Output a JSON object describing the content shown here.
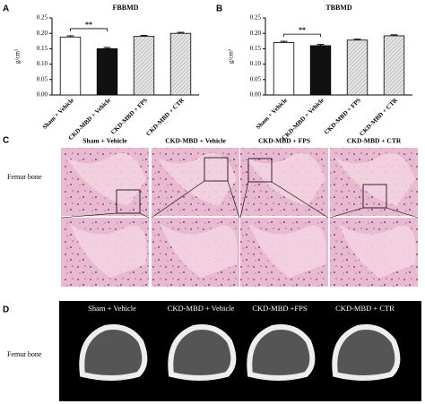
{
  "chart_data": [
    {
      "type": "bar",
      "panel": "A",
      "title": "FBBMD",
      "y_label": "g/cm³",
      "categories": [
        "Sham + Vehicle",
        "CKD-MBD + Vehicle",
        "CKD-MBD + FPS",
        "CKD-MBD + CTR"
      ],
      "values": [
        0.188,
        0.15,
        0.19,
        0.2
      ],
      "errors": [
        0.004,
        0.004,
        0.003,
        0.003
      ],
      "colors": [
        "#ffffff",
        "#111111",
        "#d9d9d9",
        "#d9d9d9"
      ],
      "significance": "**",
      "ylim": [
        0,
        0.25
      ],
      "yticks": [
        {
          "value": 0,
          "label": "0.00"
        },
        0.05,
        {
          "value": 0.1,
          "label": "0.10"
        },
        0.15,
        {
          "value": 0.2,
          "label": "0.20"
        },
        0.25
      ]
    },
    {
      "type": "bar",
      "panel": "B",
      "title": "TBBMD",
      "y_label": "g/cm³",
      "categories": [
        "Sham + Vehicle",
        "CKD-MBD + Vehicle",
        "CKD-MBD + FPS",
        "CKD-MBD + CTR"
      ],
      "values": [
        0.17,
        0.16,
        0.178,
        0.192
      ],
      "errors": [
        0.004,
        0.004,
        0.003,
        0.003
      ],
      "colors": [
        "#ffffff",
        "#111111",
        "#d9d9d9",
        "#d9d9d9"
      ],
      "significance": "**",
      "ylim": [
        0,
        0.25
      ],
      "yticks": [
        {
          "value": 0,
          "label": "0.00"
        },
        0.05,
        {
          "value": 0.1,
          "label": "0.10"
        },
        0.15,
        {
          "value": 0.2,
          "label": "0.20"
        },
        0.25
      ]
    }
  ],
  "panel_c": {
    "label": "C",
    "row_label": "Femur bone",
    "columns": [
      "Sham + Vehicle",
      "CKD-MBD + Vehicle",
      "CKD-MBD + FPS",
      "CKD-MBD + CTR"
    ]
  },
  "panel_d": {
    "label": "D",
    "row_label": "Femur bone",
    "columns": [
      "Sham + Vehicle",
      "CKD-MBD + Vehicle",
      "CKD-MBD +FPS",
      "CKD-MBD + CTR"
    ]
  }
}
